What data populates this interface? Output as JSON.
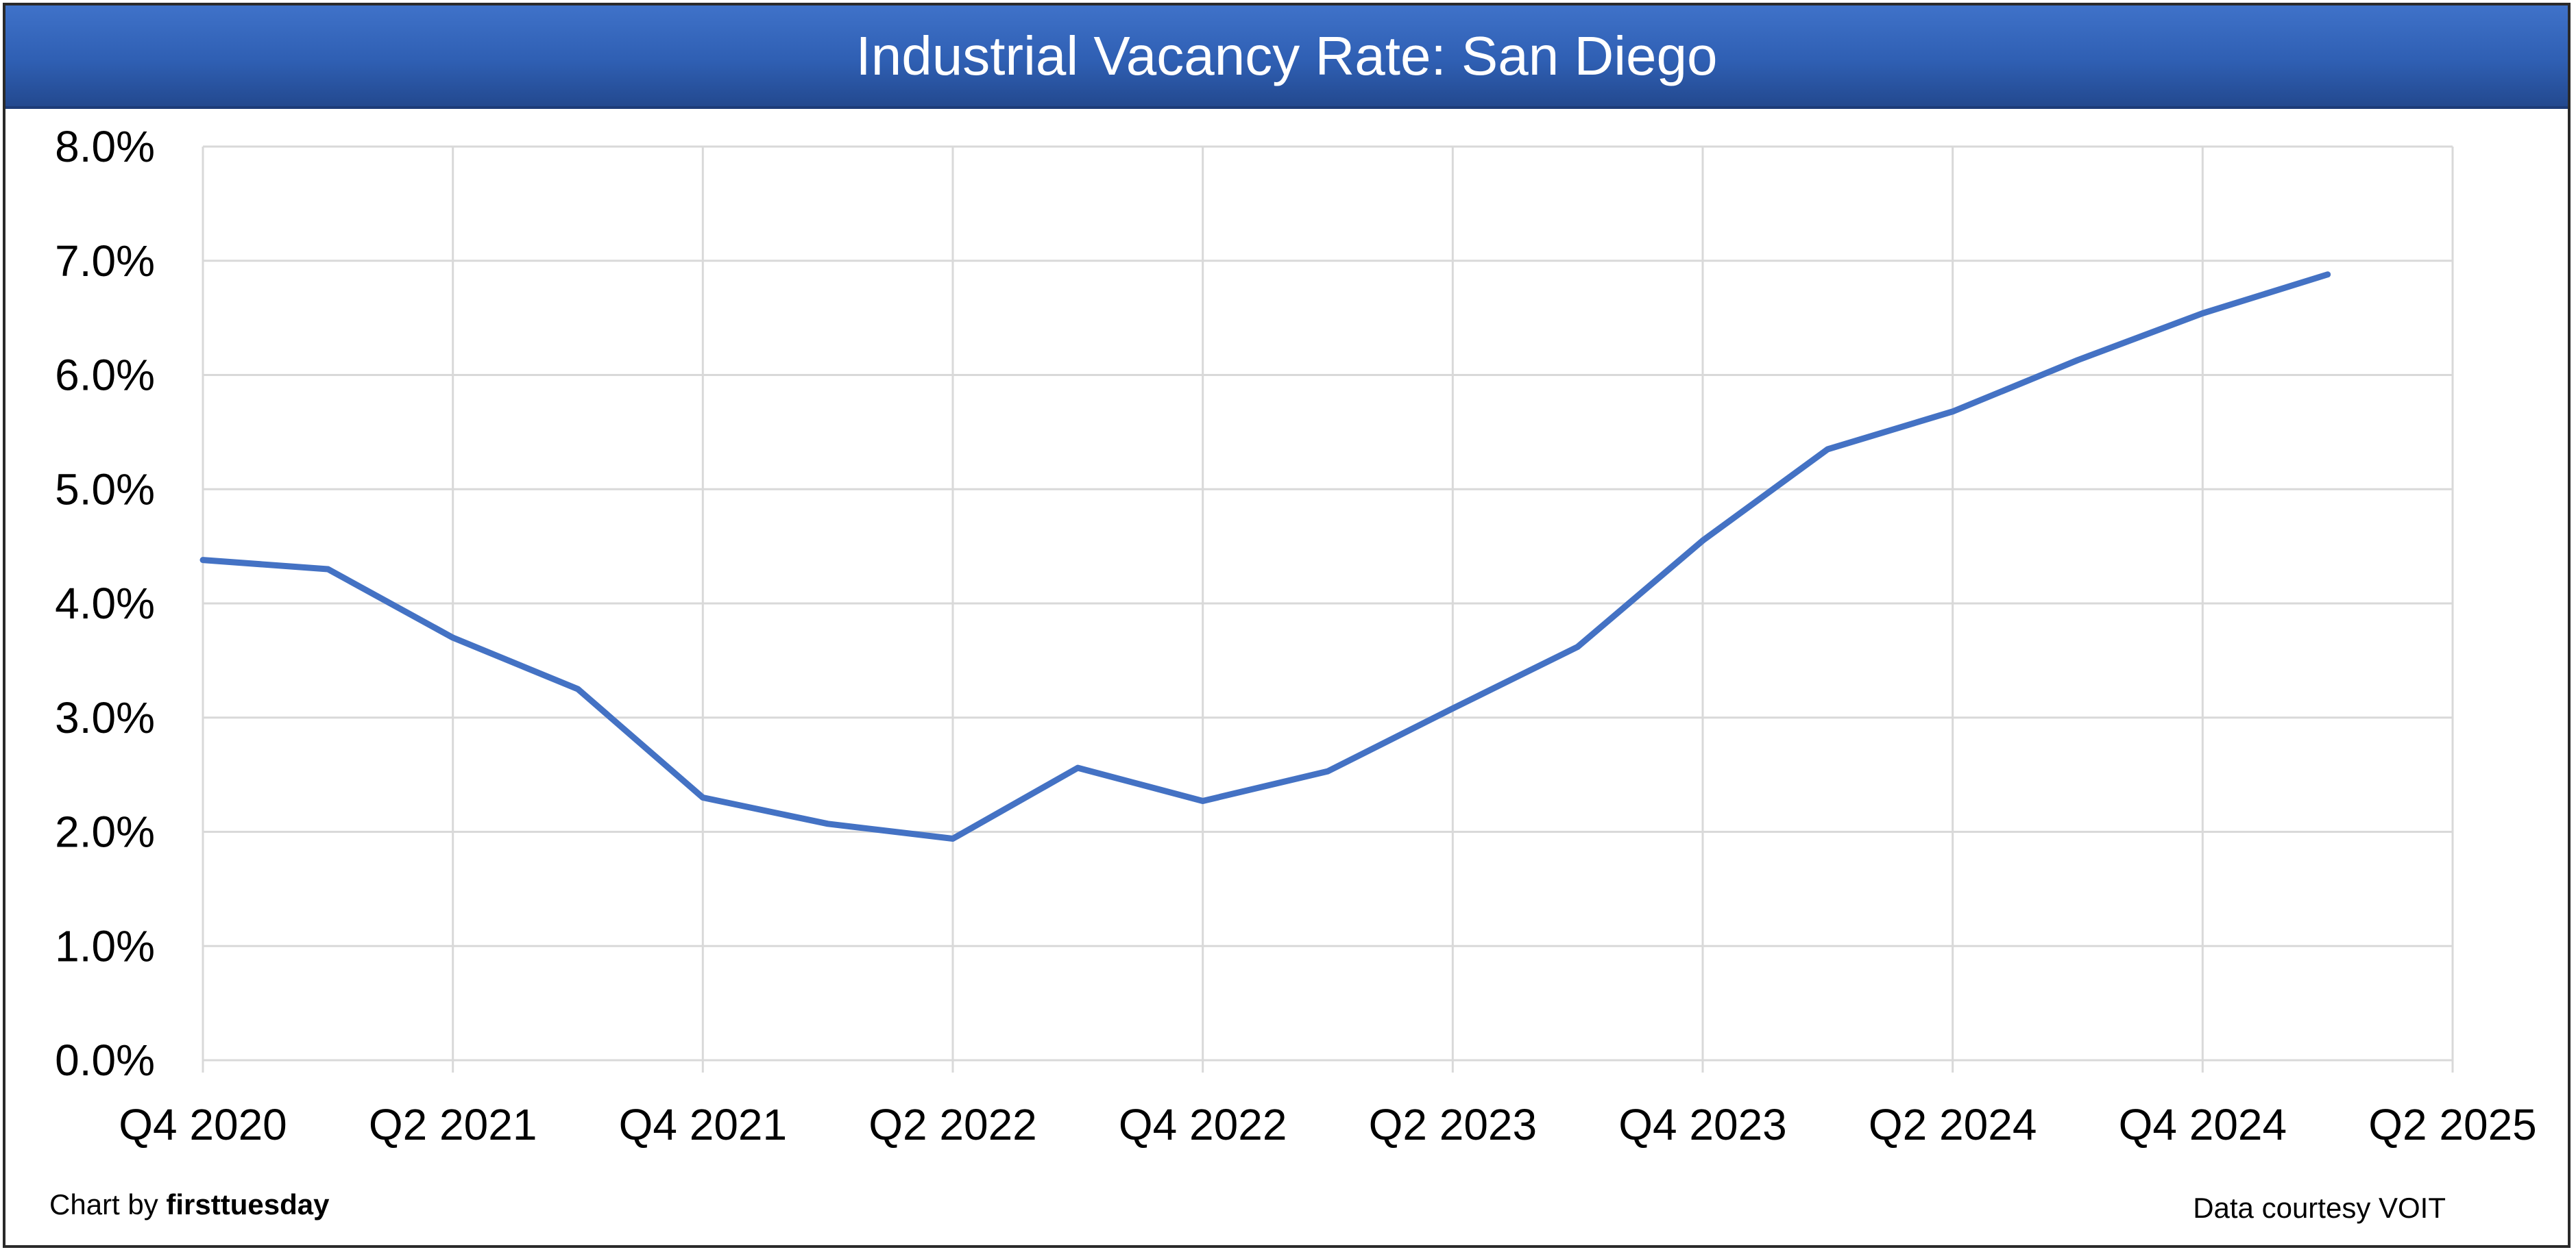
{
  "chart_data": {
    "type": "line",
    "title": "Industrial Vacancy Rate: San Diego",
    "xlabel": "",
    "ylabel": "",
    "x_tick_labels": [
      "Q4 2020",
      "Q2 2021",
      "Q4 2021",
      "Q2 2022",
      "Q4 2022",
      "Q2 2023",
      "Q4 2023",
      "Q2 2024",
      "Q4 2024",
      "Q2 2025"
    ],
    "y_tick_labels": [
      "0.0%",
      "1.0%",
      "2.0%",
      "3.0%",
      "4.0%",
      "5.0%",
      "6.0%",
      "7.0%",
      "8.0%"
    ],
    "ylim": [
      0,
      8
    ],
    "y_unit": "%",
    "grid": true,
    "legend": "none",
    "series": [
      {
        "color": "#4472C4",
        "x": [
          "Q4 2020",
          "Q1 2021",
          "Q2 2021",
          "Q3 2021",
          "Q4 2021",
          "Q1 2022",
          "Q2 2022",
          "Q3 2022",
          "Q4 2022",
          "Q1 2023",
          "Q2 2023",
          "Q3 2023",
          "Q4 2023",
          "Q1 2024",
          "Q2 2024",
          "Q3 2024",
          "Q4 2024",
          "Q1 2025"
        ],
        "values": [
          4.38,
          4.3,
          3.7,
          3.25,
          2.3,
          2.07,
          1.94,
          2.56,
          2.27,
          2.53,
          3.08,
          3.62,
          4.55,
          5.35,
          5.68,
          6.13,
          6.54,
          6.88
        ]
      }
    ]
  },
  "footer": {
    "credit_prefix": "Chart by ",
    "credit_brand": "firsttuesday",
    "source": "Data courtesy VOIT"
  },
  "colors": {
    "title_bar": "#2f5fb3",
    "line": "#4472C4",
    "grid": "#d9d9d9"
  }
}
